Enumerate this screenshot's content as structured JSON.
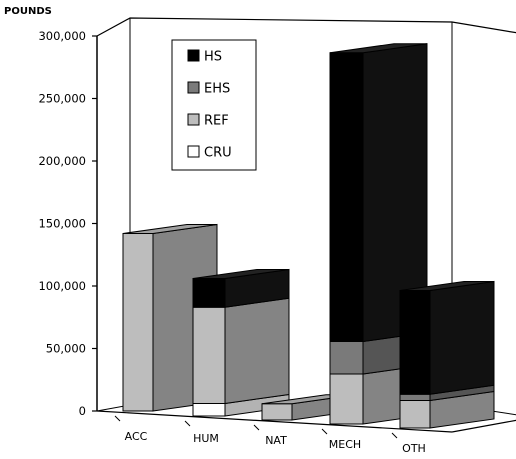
{
  "chart_data": {
    "type": "bar",
    "stacked": true,
    "three_d": true,
    "ylabel": "POUNDS",
    "ylim": [
      0,
      300000
    ],
    "yticks": [
      "0",
      "50,000",
      "100,000",
      "150,000",
      "200,000",
      "250,000",
      "300,000"
    ],
    "categories": [
      "ACC",
      "HUM",
      "NAT",
      "MECH",
      "OTH"
    ],
    "series": [
      {
        "name": "CRU",
        "color": "#ffffff",
        "values": [
          0,
          10000,
          0,
          0,
          0
        ]
      },
      {
        "name": "REF",
        "color": "#bdbdbd",
        "values": [
          142000,
          77000,
          13000,
          40000,
          22000
        ]
      },
      {
        "name": "EHS",
        "color": "#7a7a7a",
        "values": [
          0,
          0,
          0,
          26000,
          5000
        ]
      },
      {
        "name": "HS",
        "color": "#000000",
        "values": [
          0,
          23000,
          0,
          231000,
          83000
        ]
      }
    ],
    "legend_position": "top-left, inside",
    "grid": false
  }
}
